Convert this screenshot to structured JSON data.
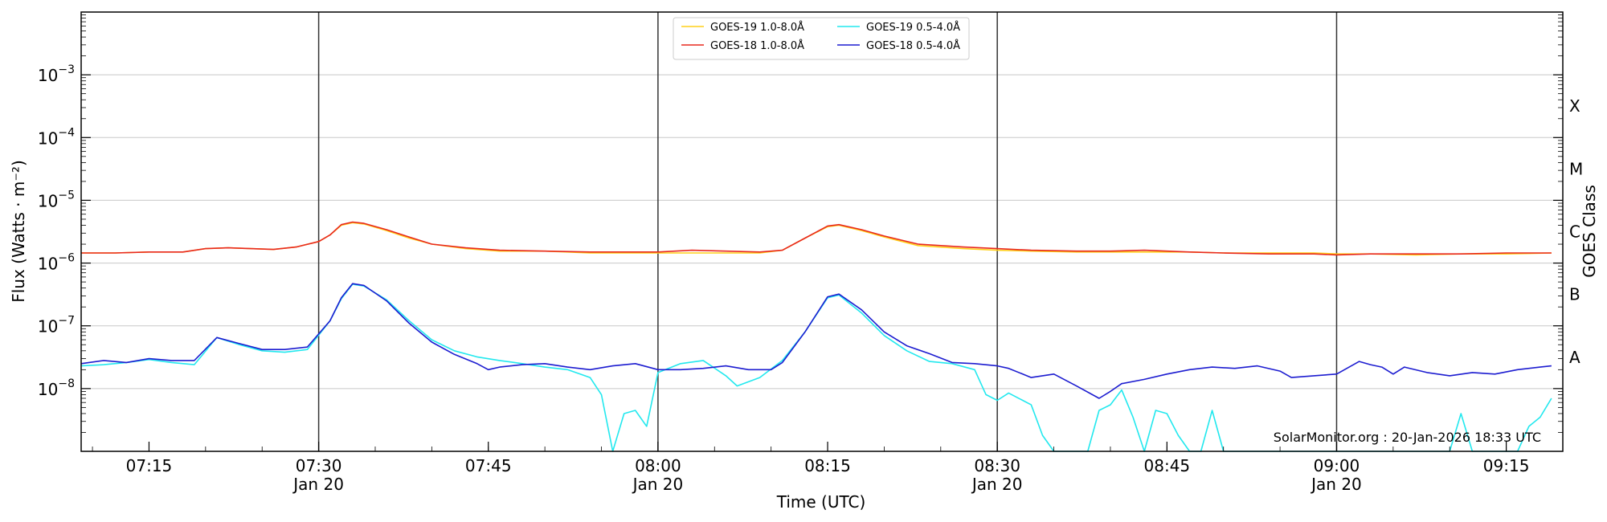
{
  "chart_data": {
    "type": "line",
    "xlabel": "Time (UTC)",
    "ylabel": "Flux (Watts · m⁻²)",
    "ylabel_right": "GOES Class",
    "yscale": "log",
    "xlim": [
      "07:09",
      "09:20"
    ],
    "ylim": [
      1e-09,
      0.01
    ],
    "credit": "SolarMonitor.org : 20-Jan-2026 18:33 UTC",
    "x_ticks": [
      {
        "time": "07:15",
        "label": "07:15",
        "date": ""
      },
      {
        "time": "07:30",
        "label": "07:30",
        "date": "Jan 20"
      },
      {
        "time": "07:45",
        "label": "07:45",
        "date": ""
      },
      {
        "time": "08:00",
        "label": "08:00",
        "date": "Jan 20"
      },
      {
        "time": "08:15",
        "label": "08:15",
        "date": ""
      },
      {
        "time": "08:30",
        "label": "08:30",
        "date": "Jan 20"
      },
      {
        "time": "08:45",
        "label": "08:45",
        "date": ""
      },
      {
        "time": "09:00",
        "label": "09:00",
        "date": "Jan 20"
      },
      {
        "time": "09:15",
        "label": "09:15",
        "date": ""
      }
    ],
    "y_ticks": [
      {
        "value": 1e-08,
        "exp": "−8"
      },
      {
        "value": 1e-07,
        "exp": "−7"
      },
      {
        "value": 1e-06,
        "exp": "−6"
      },
      {
        "value": 1e-05,
        "exp": "−5"
      },
      {
        "value": 0.0001,
        "exp": "−4"
      },
      {
        "value": 0.001,
        "exp": "−3"
      }
    ],
    "vlines": [
      "07:30",
      "08:00",
      "08:30",
      "09:00"
    ],
    "grid": "horizontal",
    "goes_classes": [
      {
        "label": "X",
        "value": 0.0003162
      },
      {
        "label": "M",
        "value": 3.162e-05
      },
      {
        "label": "C",
        "value": 3.162e-06
      },
      {
        "label": "B",
        "value": 3.162e-07
      },
      {
        "label": "A",
        "value": 3.162e-08
      }
    ],
    "legend_position": "top-center",
    "series": [
      {
        "name": "GOES-19 1.0-8.0Å",
        "color": "#ffd11a",
        "points": [
          [
            "07:09",
            1.45e-06
          ],
          [
            "07:12",
            1.45e-06
          ],
          [
            "07:15",
            1.5e-06
          ],
          [
            "07:18",
            1.5e-06
          ],
          [
            "07:20",
            1.7e-06
          ],
          [
            "07:22",
            1.75e-06
          ],
          [
            "07:24",
            1.7e-06
          ],
          [
            "07:26",
            1.65e-06
          ],
          [
            "07:28",
            1.8e-06
          ],
          [
            "07:30",
            2.2e-06
          ],
          [
            "07:31",
            2.8e-06
          ],
          [
            "07:32",
            4e-06
          ],
          [
            "07:33",
            4.4e-06
          ],
          [
            "07:34",
            4.2e-06
          ],
          [
            "07:36",
            3.3e-06
          ],
          [
            "07:38",
            2.5e-06
          ],
          [
            "07:40",
            2e-06
          ],
          [
            "07:43",
            1.7e-06
          ],
          [
            "07:46",
            1.55e-06
          ],
          [
            "07:50",
            1.55e-06
          ],
          [
            "07:54",
            1.45e-06
          ],
          [
            "07:58",
            1.45e-06
          ],
          [
            "08:00",
            1.45e-06
          ],
          [
            "08:03",
            1.45e-06
          ],
          [
            "08:06",
            1.45e-06
          ],
          [
            "08:09",
            1.45e-06
          ],
          [
            "08:11",
            1.6e-06
          ],
          [
            "08:13",
            2.5e-06
          ],
          [
            "08:15",
            3.8e-06
          ],
          [
            "08:16",
            4e-06
          ],
          [
            "08:18",
            3.3e-06
          ],
          [
            "08:20",
            2.6e-06
          ],
          [
            "08:23",
            1.9e-06
          ],
          [
            "08:27",
            1.7e-06
          ],
          [
            "08:30",
            1.6e-06
          ],
          [
            "08:33",
            1.55e-06
          ],
          [
            "08:37",
            1.5e-06
          ],
          [
            "08:40",
            1.5e-06
          ],
          [
            "08:43",
            1.5e-06
          ],
          [
            "08:47",
            1.5e-06
          ],
          [
            "08:50",
            1.45e-06
          ],
          [
            "08:54",
            1.45e-06
          ],
          [
            "08:58",
            1.45e-06
          ],
          [
            "09:00",
            1.4e-06
          ],
          [
            "09:03",
            1.4e-06
          ],
          [
            "09:07",
            1.35e-06
          ],
          [
            "09:11",
            1.4e-06
          ],
          [
            "09:15",
            1.4e-06
          ],
          [
            "09:19",
            1.45e-06
          ]
        ]
      },
      {
        "name": "GOES-18 1.0-8.0Å",
        "color": "#e8281e",
        "points": [
          [
            "07:09",
            1.45e-06
          ],
          [
            "07:12",
            1.45e-06
          ],
          [
            "07:15",
            1.5e-06
          ],
          [
            "07:18",
            1.5e-06
          ],
          [
            "07:20",
            1.7e-06
          ],
          [
            "07:22",
            1.75e-06
          ],
          [
            "07:24",
            1.7e-06
          ],
          [
            "07:26",
            1.65e-06
          ],
          [
            "07:28",
            1.8e-06
          ],
          [
            "07:30",
            2.2e-06
          ],
          [
            "07:31",
            2.8e-06
          ],
          [
            "07:32",
            4.1e-06
          ],
          [
            "07:33",
            4.5e-06
          ],
          [
            "07:34",
            4.3e-06
          ],
          [
            "07:36",
            3.4e-06
          ],
          [
            "07:38",
            2.6e-06
          ],
          [
            "07:40",
            2e-06
          ],
          [
            "07:43",
            1.75e-06
          ],
          [
            "07:46",
            1.6e-06
          ],
          [
            "07:50",
            1.55e-06
          ],
          [
            "07:54",
            1.5e-06
          ],
          [
            "07:58",
            1.5e-06
          ],
          [
            "08:00",
            1.5e-06
          ],
          [
            "08:03",
            1.6e-06
          ],
          [
            "08:06",
            1.55e-06
          ],
          [
            "08:09",
            1.5e-06
          ],
          [
            "08:11",
            1.6e-06
          ],
          [
            "08:13",
            2.5e-06
          ],
          [
            "08:15",
            3.9e-06
          ],
          [
            "08:16",
            4.1e-06
          ],
          [
            "08:18",
            3.4e-06
          ],
          [
            "08:20",
            2.7e-06
          ],
          [
            "08:23",
            2e-06
          ],
          [
            "08:27",
            1.8e-06
          ],
          [
            "08:30",
            1.7e-06
          ],
          [
            "08:33",
            1.6e-06
          ],
          [
            "08:37",
            1.55e-06
          ],
          [
            "08:40",
            1.55e-06
          ],
          [
            "08:43",
            1.6e-06
          ],
          [
            "08:47",
            1.5e-06
          ],
          [
            "08:50",
            1.45e-06
          ],
          [
            "08:54",
            1.4e-06
          ],
          [
            "08:58",
            1.4e-06
          ],
          [
            "09:00",
            1.35e-06
          ],
          [
            "09:03",
            1.4e-06
          ],
          [
            "09:07",
            1.4e-06
          ],
          [
            "09:11",
            1.4e-06
          ],
          [
            "09:15",
            1.45e-06
          ],
          [
            "09:19",
            1.45e-06
          ]
        ]
      },
      {
        "name": "GOES-19 0.5-4.0Å",
        "color": "#22e8ee",
        "points": [
          [
            "07:09",
            2.3e-08
          ],
          [
            "07:11",
            2.4e-08
          ],
          [
            "07:13",
            2.6e-08
          ],
          [
            "07:15",
            2.9e-08
          ],
          [
            "07:17",
            2.6e-08
          ],
          [
            "07:19",
            2.4e-08
          ],
          [
            "07:21",
            6.5e-08
          ],
          [
            "07:23",
            5e-08
          ],
          [
            "07:25",
            4e-08
          ],
          [
            "07:27",
            3.8e-08
          ],
          [
            "07:29",
            4.2e-08
          ],
          [
            "07:31",
            1.2e-07
          ],
          [
            "07:32",
            2.7e-07
          ],
          [
            "07:33",
            4.6e-07
          ],
          [
            "07:34",
            4.3e-07
          ],
          [
            "07:36",
            2.6e-07
          ],
          [
            "07:38",
            1.2e-07
          ],
          [
            "07:40",
            6e-08
          ],
          [
            "07:42",
            4e-08
          ],
          [
            "07:44",
            3.2e-08
          ],
          [
            "07:46",
            2.8e-08
          ],
          [
            "07:48",
            2.5e-08
          ],
          [
            "07:50",
            2.2e-08
          ],
          [
            "07:52",
            2e-08
          ],
          [
            "07:54",
            1.5e-08
          ],
          [
            "07:55",
            8e-09
          ],
          [
            "07:56",
            1e-09
          ],
          [
            "07:57",
            4e-09
          ],
          [
            "07:58",
            4.5e-09
          ],
          [
            "07:59",
            2.5e-09
          ],
          [
            "08:00",
            1.8e-08
          ],
          [
            "08:02",
            2.5e-08
          ],
          [
            "08:04",
            2.8e-08
          ],
          [
            "08:06",
            1.6e-08
          ],
          [
            "08:07",
            1.1e-08
          ],
          [
            "08:09",
            1.5e-08
          ],
          [
            "08:11",
            2.8e-08
          ],
          [
            "08:13",
            8e-08
          ],
          [
            "08:15",
            2.8e-07
          ],
          [
            "08:16",
            3.1e-07
          ],
          [
            "08:18",
            1.6e-07
          ],
          [
            "08:20",
            7e-08
          ],
          [
            "08:22",
            4e-08
          ],
          [
            "08:24",
            2.7e-08
          ],
          [
            "08:26",
            2.5e-08
          ],
          [
            "08:28",
            2e-08
          ],
          [
            "08:29",
            8e-09
          ],
          [
            "08:30",
            6.5e-09
          ],
          [
            "08:31",
            8.5e-09
          ],
          [
            "08:33",
            5.5e-09
          ],
          [
            "08:34",
            1.8e-09
          ],
          [
            "08:35",
            1e-09
          ],
          [
            "08:37",
            1e-09
          ],
          [
            "08:38",
            1e-09
          ],
          [
            "08:39",
            4.5e-09
          ],
          [
            "08:40",
            5.5e-09
          ],
          [
            "08:41",
            9.5e-09
          ],
          [
            "08:42",
            3.5e-09
          ],
          [
            "08:43",
            1e-09
          ],
          [
            "08:44",
            4.5e-09
          ],
          [
            "08:45",
            4e-09
          ],
          [
            "08:46",
            1.8e-09
          ],
          [
            "08:47",
            1e-09
          ],
          [
            "08:48",
            1e-09
          ],
          [
            "08:49",
            4.5e-09
          ],
          [
            "08:50",
            1e-09
          ],
          [
            "08:55",
            1e-09
          ],
          [
            "09:00",
            1e-09
          ],
          [
            "09:05",
            1e-09
          ],
          [
            "09:09",
            1e-09
          ],
          [
            "09:10",
            1e-09
          ],
          [
            "09:11",
            4e-09
          ],
          [
            "09:12",
            1e-09
          ],
          [
            "09:16",
            1e-09
          ],
          [
            "09:17",
            2.5e-09
          ],
          [
            "09:18",
            3.5e-09
          ],
          [
            "09:19",
            7e-09
          ]
        ]
      },
      {
        "name": "GOES-18 0.5-4.0Å",
        "color": "#1c1cd0",
        "points": [
          [
            "07:09",
            2.5e-08
          ],
          [
            "07:11",
            2.8e-08
          ],
          [
            "07:13",
            2.6e-08
          ],
          [
            "07:15",
            3e-08
          ],
          [
            "07:17",
            2.8e-08
          ],
          [
            "07:19",
            2.8e-08
          ],
          [
            "07:21",
            6.5e-08
          ],
          [
            "07:23",
            5.2e-08
          ],
          [
            "07:25",
            4.2e-08
          ],
          [
            "07:27",
            4.2e-08
          ],
          [
            "07:29",
            4.6e-08
          ],
          [
            "07:31",
            1.2e-07
          ],
          [
            "07:32",
            2.8e-07
          ],
          [
            "07:33",
            4.7e-07
          ],
          [
            "07:34",
            4.4e-07
          ],
          [
            "07:36",
            2.5e-07
          ],
          [
            "07:38",
            1.1e-07
          ],
          [
            "07:40",
            5.5e-08
          ],
          [
            "07:42",
            3.5e-08
          ],
          [
            "07:44",
            2.5e-08
          ],
          [
            "07:45",
            2e-08
          ],
          [
            "07:46",
            2.2e-08
          ],
          [
            "07:48",
            2.4e-08
          ],
          [
            "07:50",
            2.5e-08
          ],
          [
            "07:52",
            2.2e-08
          ],
          [
            "07:54",
            2e-08
          ],
          [
            "07:56",
            2.3e-08
          ],
          [
            "07:58",
            2.5e-08
          ],
          [
            "08:00",
            2e-08
          ],
          [
            "08:02",
            2e-08
          ],
          [
            "08:04",
            2.1e-08
          ],
          [
            "08:06",
            2.3e-08
          ],
          [
            "08:08",
            2e-08
          ],
          [
            "08:10",
            2e-08
          ],
          [
            "08:11",
            2.6e-08
          ],
          [
            "08:13",
            8e-08
          ],
          [
            "08:15",
            2.9e-07
          ],
          [
            "08:16",
            3.2e-07
          ],
          [
            "08:18",
            1.8e-07
          ],
          [
            "08:20",
            8e-08
          ],
          [
            "08:22",
            4.8e-08
          ],
          [
            "08:24",
            3.6e-08
          ],
          [
            "08:26",
            2.6e-08
          ],
          [
            "08:28",
            2.5e-08
          ],
          [
            "08:30",
            2.3e-08
          ],
          [
            "08:31",
            2.1e-08
          ],
          [
            "08:33",
            1.5e-08
          ],
          [
            "08:35",
            1.7e-08
          ],
          [
            "08:37",
            1.1e-08
          ],
          [
            "08:39",
            7e-09
          ],
          [
            "08:40",
            9e-09
          ],
          [
            "08:41",
            1.2e-08
          ],
          [
            "08:43",
            1.4e-08
          ],
          [
            "08:45",
            1.7e-08
          ],
          [
            "08:47",
            2e-08
          ],
          [
            "08:49",
            2.2e-08
          ],
          [
            "08:51",
            2.1e-08
          ],
          [
            "08:53",
            2.3e-08
          ],
          [
            "08:55",
            1.9e-08
          ],
          [
            "08:56",
            1.5e-08
          ],
          [
            "08:58",
            1.6e-08
          ],
          [
            "09:00",
            1.7e-08
          ],
          [
            "09:02",
            2.7e-08
          ],
          [
            "09:03",
            2.4e-08
          ],
          [
            "09:04",
            2.2e-08
          ],
          [
            "09:05",
            1.7e-08
          ],
          [
            "09:06",
            2.2e-08
          ],
          [
            "09:08",
            1.8e-08
          ],
          [
            "09:10",
            1.6e-08
          ],
          [
            "09:12",
            1.8e-08
          ],
          [
            "09:14",
            1.7e-08
          ],
          [
            "09:16",
            2e-08
          ],
          [
            "09:18",
            2.2e-08
          ],
          [
            "09:19",
            2.3e-08
          ]
        ]
      }
    ]
  }
}
